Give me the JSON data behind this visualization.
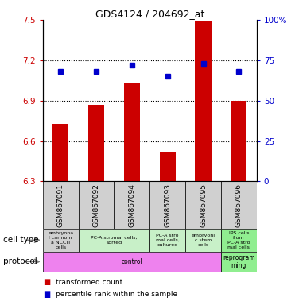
{
  "title": "GDS4124 / 204692_at",
  "samples": [
    "GSM867091",
    "GSM867092",
    "GSM867094",
    "GSM867093",
    "GSM867095",
    "GSM867096"
  ],
  "bar_values": [
    6.73,
    6.87,
    7.03,
    6.52,
    7.49,
    6.9
  ],
  "percentile_values": [
    68,
    68,
    72,
    65,
    73,
    68
  ],
  "ylim_left": [
    6.3,
    7.5
  ],
  "ylim_right": [
    0,
    100
  ],
  "yticks_left": [
    6.3,
    6.6,
    6.9,
    7.2,
    7.5
  ],
  "yticks_right": [
    0,
    25,
    50,
    75,
    100
  ],
  "hlines": [
    6.6,
    6.9,
    7.2
  ],
  "bar_color": "#cc0000",
  "dot_color": "#0000cc",
  "bar_bottom": 6.3,
  "cell_types": [
    {
      "label": "embryona\nl carinom\na NCCIT\ncells",
      "span": [
        0,
        1
      ],
      "color": "#d0d0d0"
    },
    {
      "label": "PC-A stromal cells,\nsorted",
      "span": [
        1,
        3
      ],
      "color": "#c8f0c8"
    },
    {
      "label": "PC-A stro\nmal cells,\ncultured",
      "span": [
        3,
        4
      ],
      "color": "#c8f0c8"
    },
    {
      "label": "embryoni\nc stem\ncells",
      "span": [
        4,
        5
      ],
      "color": "#c8f0c8"
    },
    {
      "label": "IPS cells\nfrom\nPC-A stro\nmal cells",
      "span": [
        5,
        6
      ],
      "color": "#90ee90"
    }
  ],
  "protocol_groups": [
    {
      "label": "control",
      "span": [
        0,
        5
      ],
      "color": "#ee82ee"
    },
    {
      "label": "reprogram\nming",
      "span": [
        5,
        6
      ],
      "color": "#90ee90"
    }
  ],
  "cell_type_label": "cell type",
  "protocol_label": "protocol",
  "legend_items": [
    {
      "label": "transformed count",
      "color": "#cc0000"
    },
    {
      "label": "percentile rank within the sample",
      "color": "#0000cc"
    }
  ]
}
